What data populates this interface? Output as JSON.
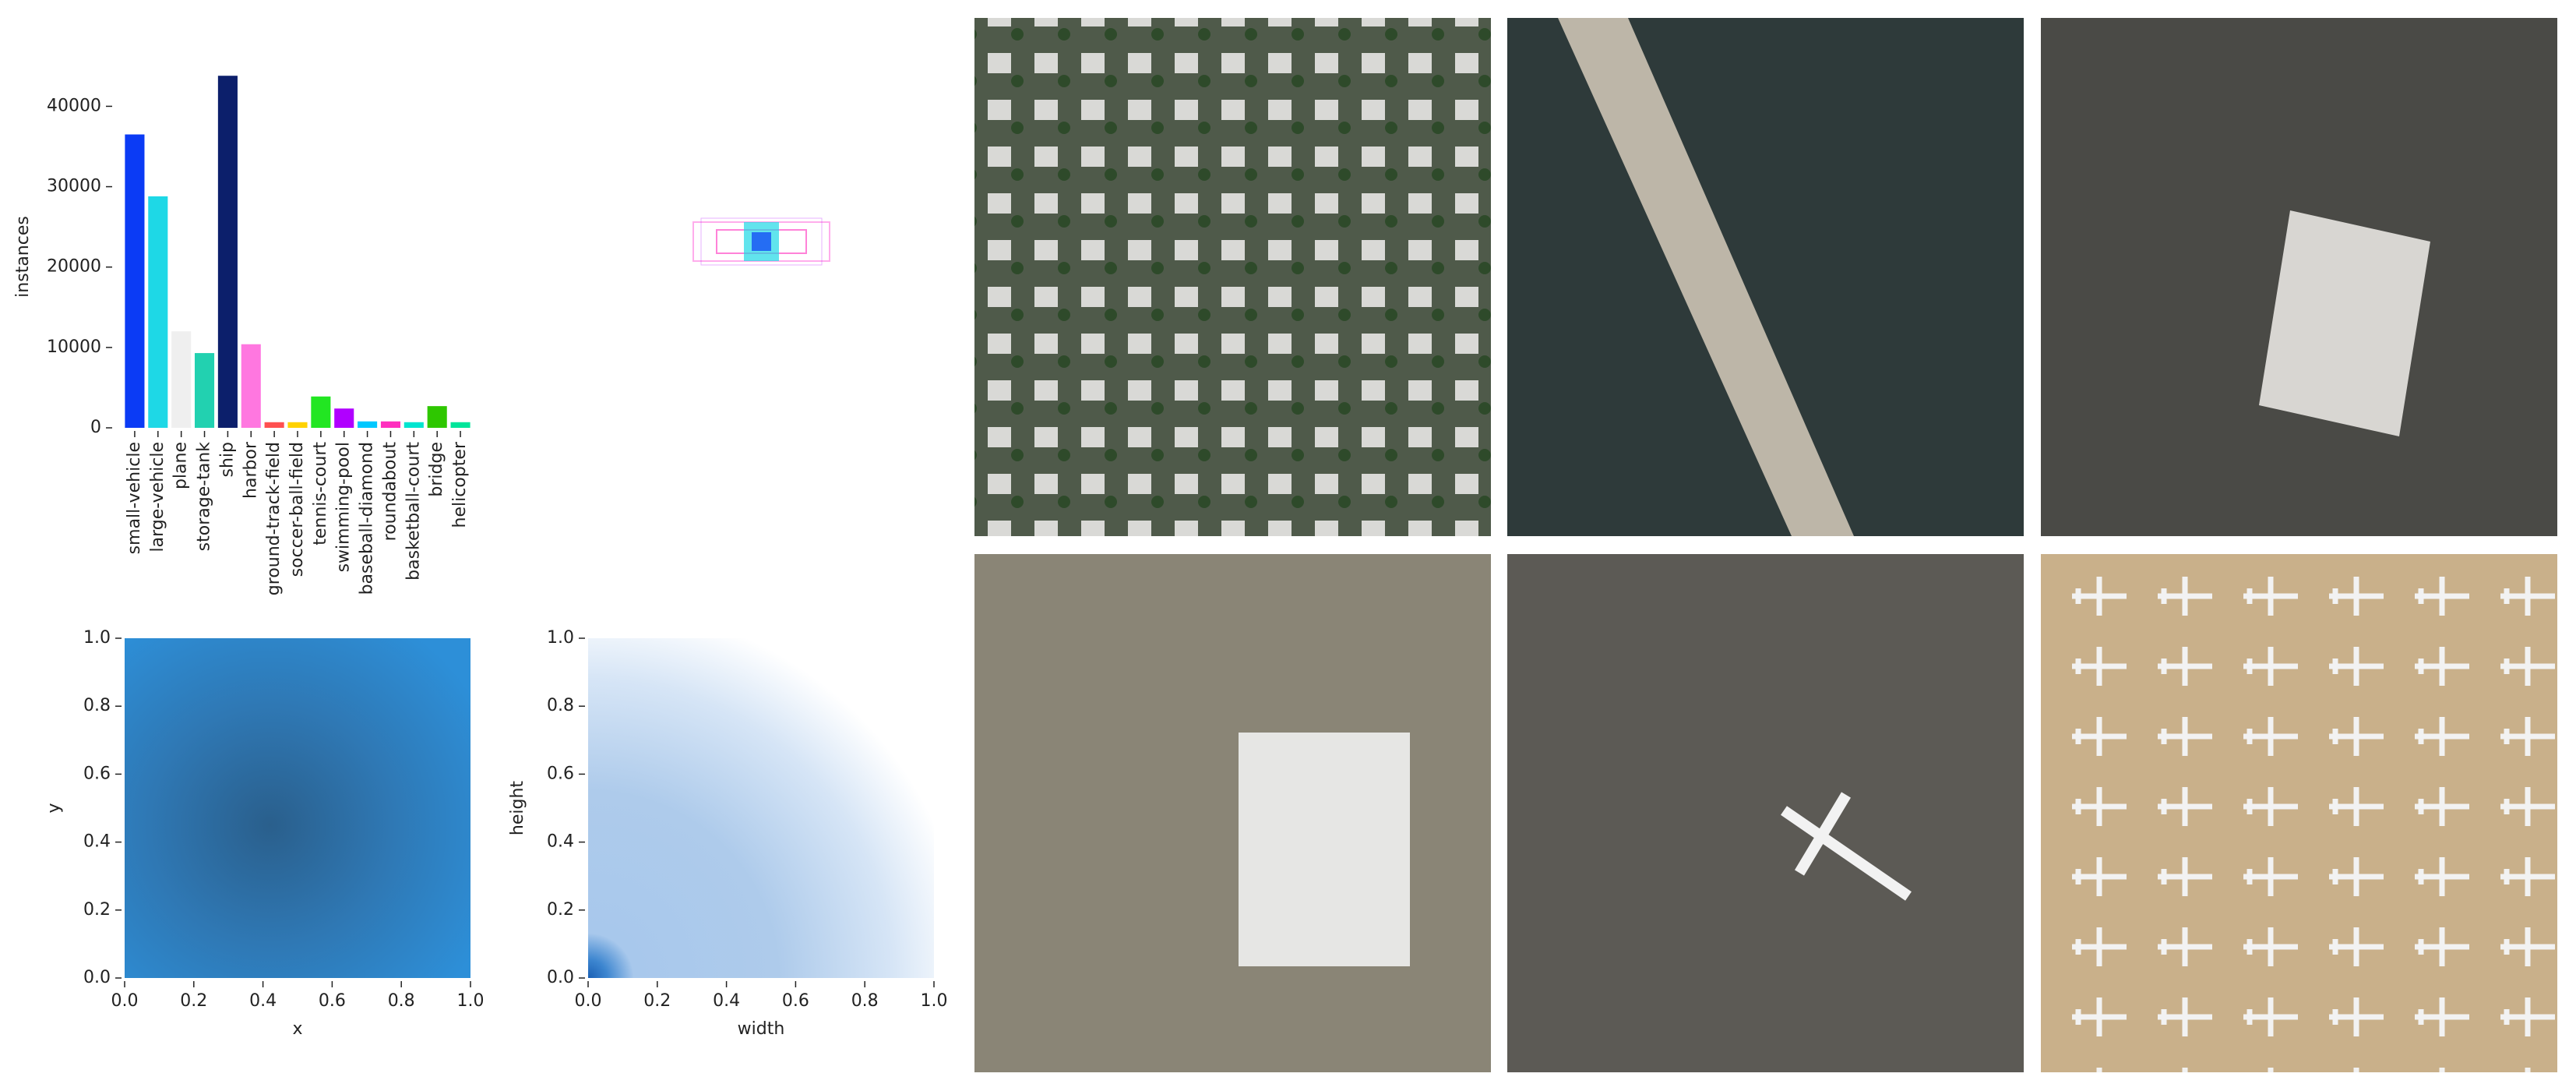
{
  "chart_data": [
    {
      "type": "bar",
      "ylabel": "instances",
      "categories": [
        "small-vehicle",
        "large-vehicle",
        "plane",
        "storage-tank",
        "ship",
        "harbor",
        "ground-track-field",
        "soccer-ball-field",
        "tennis-court",
        "swimming-pool",
        "baseball-diamond",
        "roundabout",
        "basketball-court",
        "bridge",
        "helicopter"
      ],
      "values": [
        36500,
        28800,
        12000,
        9300,
        43800,
        10400,
        700,
        700,
        3900,
        2400,
        800,
        800,
        700,
        2700,
        700
      ],
      "colors": [
        "#0b3bf5",
        "#1ed8e6",
        "#efefef",
        "#22d1b0",
        "#0c1f6b",
        "#ff77e0",
        "#ff5050",
        "#ffd200",
        "#22e622",
        "#b000ff",
        "#00c8ff",
        "#ff2fbe",
        "#00e5d0",
        "#2ec700",
        "#00e59a"
      ],
      "ylim": [
        0,
        44500
      ],
      "yticks": [
        0,
        10000,
        20000,
        30000,
        40000
      ]
    },
    {
      "type": "heatmap",
      "xlabel": "x",
      "ylabel": "y",
      "xlim": [
        0,
        1
      ],
      "ylim": [
        0,
        1
      ],
      "xticks": [
        {
          "value": 0,
          "label": "0.0"
        },
        {
          "value": 0.2,
          "label": "0.2"
        },
        {
          "value": 0.4,
          "label": "0.4"
        },
        {
          "value": 0.6,
          "label": "0.6"
        },
        {
          "value": 0.8,
          "label": "0.8"
        },
        {
          "value": 1,
          "label": "1.0"
        }
      ],
      "yticks": [
        {
          "value": 0,
          "label": "0.0"
        },
        {
          "value": 0.2,
          "label": "0.2"
        },
        {
          "value": 0.4,
          "label": "0.4"
        },
        {
          "value": 0.6,
          "label": "0.6"
        },
        {
          "value": 0.8,
          "label": "0.8"
        },
        {
          "value": 1,
          "label": "1.0"
        }
      ]
    },
    {
      "type": "heatmap",
      "xlabel": "width",
      "ylabel": "height",
      "xlim": [
        0,
        1
      ],
      "ylim": [
        0,
        1
      ],
      "xticks": [
        {
          "value": 0,
          "label": "0.0"
        },
        {
          "value": 0.2,
          "label": "0.2"
        },
        {
          "value": 0.4,
          "label": "0.4"
        },
        {
          "value": 0.6,
          "label": "0.6"
        },
        {
          "value": 0.8,
          "label": "0.8"
        },
        {
          "value": 1,
          "label": "1.0"
        }
      ],
      "yticks": [
        {
          "value": 0,
          "label": "0.0"
        },
        {
          "value": 0.2,
          "label": "0.2"
        },
        {
          "value": 0.4,
          "label": "0.4"
        },
        {
          "value": 0.6,
          "label": "0.6"
        },
        {
          "value": 0.8,
          "label": "0.8"
        },
        {
          "value": 1,
          "label": "1.0"
        }
      ]
    }
  ]
}
